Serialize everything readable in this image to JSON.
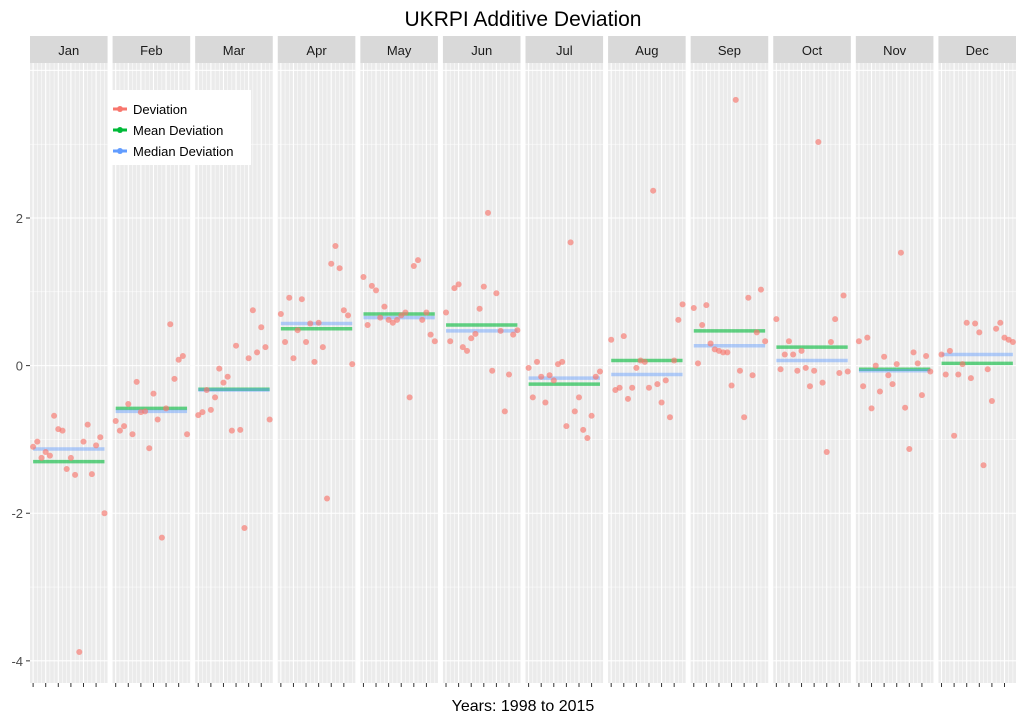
{
  "chart_data": {
    "type": "scatter",
    "title": "UKRPI Additive Deviation",
    "xlabel": "Years: 1998 to 2015",
    "ylabel": "",
    "ylim": [
      -4.3,
      4.1
    ],
    "yticks": [
      2,
      0,
      -2,
      -4
    ],
    "grid": true,
    "legend_placement": "top-left",
    "panels": [
      "Jan",
      "Feb",
      "Mar",
      "Apr",
      "May",
      "Jun",
      "Jul",
      "Aug",
      "Sep",
      "Oct",
      "Nov",
      "Dec"
    ],
    "years": [
      1998,
      1999,
      2000,
      2001,
      2002,
      2003,
      2004,
      2005,
      2006,
      2007,
      2008,
      2009,
      2010,
      2011,
      2012,
      2013,
      2014,
      2015
    ],
    "series": [
      {
        "name": "Deviation",
        "color": "#F8766D",
        "values": [
          [
            -1.1,
            -1.03,
            -1.25,
            -1.17,
            -1.22,
            -0.68,
            -0.86,
            -0.88,
            -1.4,
            -1.25,
            -1.48,
            -3.88,
            -1.03,
            -0.8,
            -1.47,
            -1.08,
            -0.97,
            -2.0
          ],
          [
            -0.75,
            -0.88,
            -0.82,
            -0.52,
            -0.93,
            -0.22,
            -0.63,
            -0.62,
            -1.12,
            -0.38,
            -0.73,
            -2.33,
            -0.58,
            0.56,
            -0.18,
            0.08,
            0.13,
            -0.93
          ],
          [
            -0.67,
            -0.63,
            -0.33,
            -0.6,
            -0.43,
            -0.04,
            -0.23,
            -0.15,
            -0.88,
            0.27,
            -0.87,
            -2.2,
            0.1,
            0.75,
            0.18,
            0.52,
            0.25,
            -0.73
          ],
          [
            0.7,
            0.32,
            0.92,
            0.1,
            0.48,
            0.9,
            0.32,
            0.57,
            0.05,
            0.58,
            0.25,
            -1.8,
            1.38,
            1.62,
            1.32,
            0.75,
            0.68,
            0.02
          ],
          [
            1.2,
            0.55,
            1.08,
            1.02,
            0.65,
            0.8,
            0.62,
            0.58,
            0.62,
            0.68,
            0.72,
            -0.43,
            1.35,
            1.43,
            0.62,
            0.72,
            0.42,
            0.33
          ],
          [
            0.72,
            0.33,
            1.05,
            1.1,
            0.25,
            0.2,
            0.37,
            0.43,
            0.77,
            1.07,
            2.07,
            -0.07,
            0.98,
            0.47,
            -0.62,
            -0.12,
            0.42,
            0.48
          ],
          [
            -0.03,
            -0.43,
            0.05,
            -0.15,
            -0.5,
            -0.13,
            -0.2,
            0.02,
            0.05,
            -0.82,
            1.67,
            -0.62,
            -0.43,
            -0.87,
            -0.98,
            -0.68,
            -0.15,
            -0.08
          ],
          [
            0.35,
            -0.33,
            -0.3,
            0.4,
            -0.45,
            -0.3,
            -0.03,
            0.07,
            0.05,
            -0.3,
            2.37,
            -0.25,
            -0.5,
            -0.2,
            -0.7,
            0.07,
            0.62,
            0.83
          ],
          [
            0.78,
            0.03,
            0.55,
            0.82,
            0.3,
            0.22,
            0.2,
            0.18,
            0.18,
            -0.27,
            3.6,
            -0.07,
            -0.7,
            0.92,
            -0.13,
            0.45,
            1.03,
            0.33
          ],
          [
            0.63,
            -0.05,
            0.15,
            0.33,
            0.15,
            -0.07,
            0.2,
            -0.03,
            -0.28,
            -0.07,
            3.03,
            -0.23,
            -1.17,
            0.32,
            0.63,
            -0.1,
            0.95,
            -0.08
          ],
          [
            0.33,
            -0.28,
            0.38,
            -0.58,
            0.0,
            -0.35,
            0.12,
            -0.13,
            -0.25,
            0.02,
            1.53,
            -0.57,
            -1.13,
            0.18,
            0.03,
            -0.4,
            0.13,
            -0.08
          ],
          [
            0.15,
            -0.12,
            0.2,
            -0.95,
            -0.12,
            0.02,
            0.58,
            -0.17,
            0.57,
            0.45,
            -1.35,
            -0.05,
            -0.48,
            0.5,
            0.58,
            0.38,
            0.35,
            0.32
          ]
        ]
      },
      {
        "name": "Mean Deviation",
        "color": "#00BA38",
        "values": [
          -1.3,
          -0.58,
          -0.32,
          0.5,
          0.7,
          0.55,
          -0.25,
          0.07,
          0.47,
          0.25,
          -0.05,
          0.03
        ]
      },
      {
        "name": "Median Deviation",
        "color": "#619CFF",
        "values": [
          -1.13,
          -0.62,
          -0.33,
          0.57,
          0.65,
          0.47,
          -0.17,
          -0.12,
          0.27,
          0.07,
          -0.07,
          0.15
        ]
      }
    ]
  }
}
